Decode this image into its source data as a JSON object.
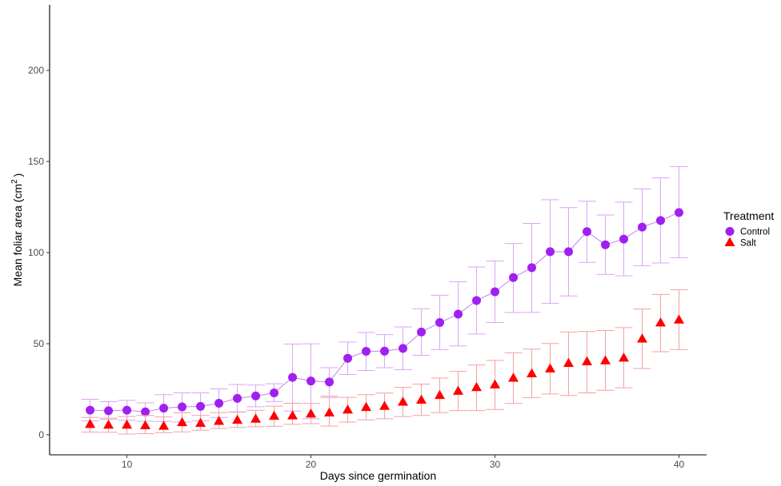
{
  "chart_data": {
    "type": "line",
    "xlabel": "Days since germination",
    "ylabel_main": "Mean foliar area (cm",
    "ylabel_sup": "2",
    "ylabel_end": ")",
    "xlim": [
      5.8,
      41.5
    ],
    "ylim": [
      -11,
      236
    ],
    "x_ticks": [
      10,
      20,
      30,
      40
    ],
    "y_ticks": [
      0,
      50,
      100,
      150,
      200
    ],
    "grid": false,
    "legend": {
      "title": "Treatment",
      "placement": "right"
    },
    "x": [
      8,
      9,
      10,
      11,
      12,
      13,
      14,
      15,
      16,
      17,
      18,
      19,
      20,
      21,
      22,
      23,
      24,
      25,
      26,
      27,
      28,
      29,
      30,
      31,
      32,
      33,
      34,
      35,
      36,
      37,
      38,
      39,
      40
    ],
    "series": [
      {
        "name": "Control",
        "color": "#a020f0",
        "marker": "circle",
        "line": true,
        "values": [
          13.5,
          13.2,
          13.5,
          12.6,
          14.6,
          15.3,
          15.6,
          17.3,
          20.0,
          21.3,
          23.0,
          31.5,
          29.5,
          29.0,
          42.0,
          45.8,
          45.9,
          47.4,
          56.4,
          61.6,
          66.2,
          73.7,
          78.5,
          86.3,
          91.7,
          100.5,
          100.5,
          111.5,
          104.3,
          107.4,
          114.0,
          117.6,
          122.0
        ],
        "lower": [
          7.6,
          8.4,
          8.0,
          7.4,
          7.3,
          7.0,
          7.7,
          9.5,
          12.4,
          15.4,
          18.3,
          13.0,
          8.8,
          21.2,
          33.1,
          35.3,
          36.8,
          35.7,
          43.6,
          46.8,
          48.8,
          55.3,
          61.6,
          67.1,
          67.2,
          72.1,
          76.2,
          94.6,
          88.0,
          87.3,
          92.8,
          94.3,
          97.2
        ],
        "upper": [
          19.5,
          18.2,
          18.9,
          17.5,
          22.0,
          23.0,
          23.0,
          25.2,
          27.6,
          27.3,
          28.0,
          49.8,
          49.9,
          36.8,
          50.9,
          56.2,
          55.0,
          59.2,
          69.2,
          76.6,
          84.0,
          92.1,
          95.4,
          105.0,
          116.0,
          129.0,
          124.7,
          128.2,
          120.6,
          127.7,
          135.0,
          141.0,
          147.2
        ]
      },
      {
        "name": "Salt",
        "color": "#ff0000",
        "marker": "triangle",
        "line": false,
        "values": [
          5.9,
          5.5,
          5.5,
          5.2,
          4.9,
          6.9,
          6.5,
          7.6,
          8.2,
          8.8,
          10.4,
          10.6,
          11.6,
          12.2,
          13.8,
          15.2,
          15.8,
          18.1,
          19.2,
          21.8,
          24.1,
          26.1,
          27.6,
          31.3,
          33.7,
          36.4,
          39.4,
          40.3,
          40.8,
          42.3,
          52.8,
          61.6,
          63.2
        ],
        "lower": [
          1.5,
          1.4,
          0.4,
          0.6,
          1.2,
          1.6,
          2.5,
          3.5,
          4.0,
          4.4,
          4.7,
          5.7,
          6.1,
          4.8,
          7.0,
          8.2,
          8.8,
          10.0,
          10.6,
          12.2,
          13.3,
          13.3,
          13.9,
          17.2,
          20.4,
          22.4,
          21.6,
          23.0,
          24.4,
          25.8,
          36.4,
          45.6,
          46.8
        ],
        "upper": [
          9.5,
          9.1,
          10.0,
          10.6,
          9.8,
          12.1,
          10.6,
          12.2,
          12.6,
          13.4,
          15.7,
          17.3,
          17.2,
          20.5,
          20.6,
          22.0,
          22.9,
          26.0,
          27.8,
          31.1,
          34.8,
          38.3,
          40.8,
          45.0,
          47.0,
          50.1,
          56.4,
          56.7,
          57.2,
          58.8,
          69.0,
          77.0,
          79.6
        ]
      }
    ]
  }
}
